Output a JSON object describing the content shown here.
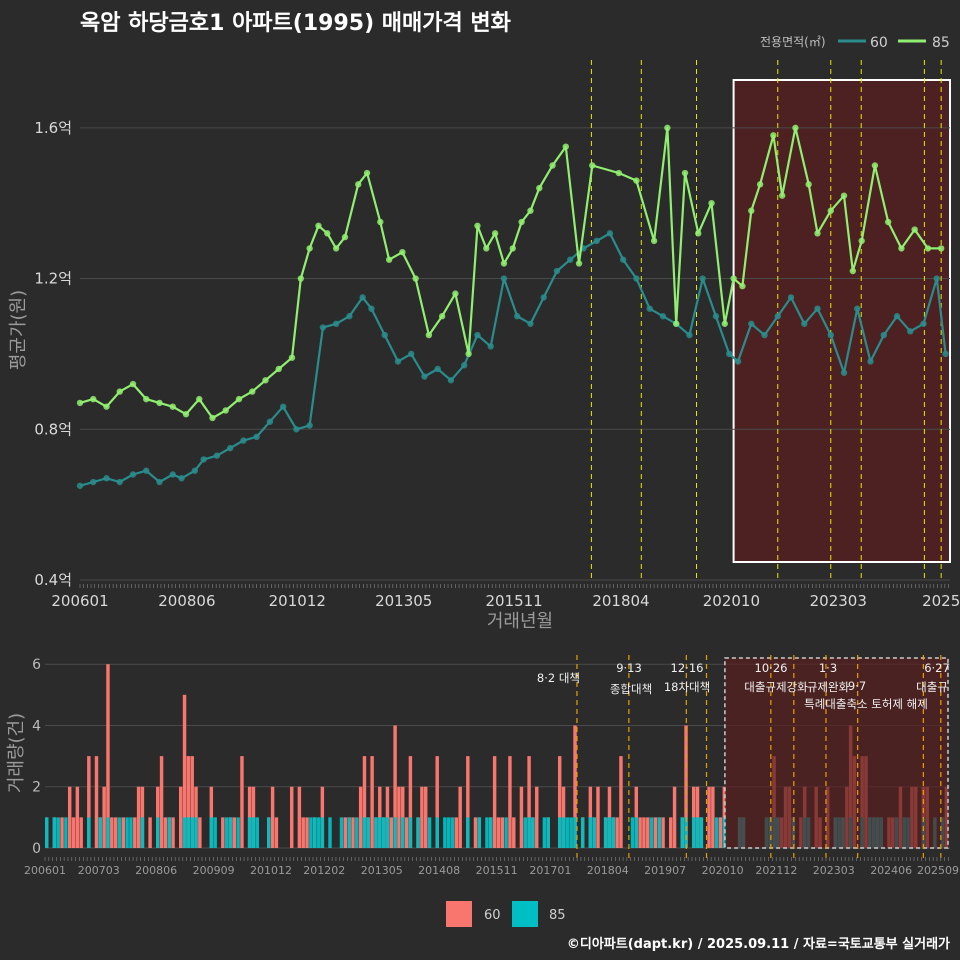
{
  "title": "옥암 하당금호1 아파트(1995) 매매가격 변화",
  "footer": "©디아파트(dapt.kr) / 2025.09.11 / 자료=국토교통부 실거래가",
  "colors": {
    "bg": "#2b2b2b",
    "line60": "#2a8c8c",
    "line85": "#90ee70",
    "bar60": "#f8766d",
    "bar85": "#00bfc4",
    "highlight": "#5a1f1f",
    "vline": "#e8e800",
    "vline2": "#e8a000"
  },
  "chart_data": [
    {
      "type": "line",
      "legend_title": "전용면적(㎡)",
      "series": [
        {
          "name": "60",
          "color": "#2a8c8c",
          "x": [
            2006.0,
            2006.3,
            2006.6,
            2006.9,
            2007.2,
            2007.5,
            2007.8,
            2008.1,
            2008.3,
            2008.6,
            2008.8,
            2009.1,
            2009.4,
            2009.7,
            2010.0,
            2010.3,
            2010.6,
            2010.9,
            2011.2,
            2011.5,
            2011.8,
            2012.1,
            2012.4,
            2012.6,
            2012.9,
            2013.2,
            2013.5,
            2013.8,
            2014.1,
            2014.4,
            2014.7,
            2015.0,
            2015.3,
            2015.6,
            2015.9,
            2016.2,
            2016.5,
            2016.8,
            2017.1,
            2017.4,
            2017.7,
            2018.0,
            2018.3,
            2018.6,
            2018.9,
            2019.2,
            2019.5,
            2019.8,
            2020.1,
            2020.4,
            2020.7,
            2020.9,
            2021.2,
            2021.5,
            2021.8,
            2022.1,
            2022.4,
            2022.7,
            2023.0,
            2023.3,
            2023.6,
            2023.9,
            2024.2,
            2024.5,
            2024.8,
            2025.1,
            2025.4,
            2025.6
          ],
          "values": [
            0.65,
            0.66,
            0.67,
            0.66,
            0.68,
            0.69,
            0.66,
            0.68,
            0.67,
            0.69,
            0.72,
            0.73,
            0.75,
            0.77,
            0.78,
            0.82,
            0.86,
            0.8,
            0.81,
            1.07,
            1.08,
            1.1,
            1.15,
            1.12,
            1.05,
            0.98,
            1.0,
            0.94,
            0.96,
            0.93,
            0.97,
            1.05,
            1.02,
            1.2,
            1.1,
            1.08,
            1.15,
            1.22,
            1.25,
            1.28,
            1.3,
            1.32,
            1.25,
            1.2,
            1.12,
            1.1,
            1.08,
            1.05,
            1.2,
            1.1,
            1.0,
            0.98,
            1.08,
            1.05,
            1.1,
            1.15,
            1.08,
            1.12,
            1.05,
            0.95,
            1.12,
            0.98,
            1.05,
            1.1,
            1.06,
            1.08,
            1.2,
            1.0
          ]
        },
        {
          "name": "85",
          "color": "#90ee70",
          "x": [
            2006.0,
            2006.3,
            2006.6,
            2006.9,
            2007.2,
            2007.5,
            2007.8,
            2008.1,
            2008.4,
            2008.7,
            2009.0,
            2009.3,
            2009.6,
            2009.9,
            2010.2,
            2010.5,
            2010.8,
            2011.0,
            2011.2,
            2011.4,
            2011.6,
            2011.8,
            2012.0,
            2012.3,
            2012.5,
            2012.8,
            2013.0,
            2013.3,
            2013.6,
            2013.9,
            2014.2,
            2014.5,
            2014.8,
            2015.0,
            2015.2,
            2015.4,
            2015.6,
            2015.8,
            2016.0,
            2016.2,
            2016.4,
            2016.7,
            2017.0,
            2017.3,
            2017.6,
            2018.2,
            2018.6,
            2019.0,
            2019.3,
            2019.5,
            2019.7,
            2020.0,
            2020.3,
            2020.6,
            2020.8,
            2021.0,
            2021.2,
            2021.4,
            2021.7,
            2021.9,
            2022.2,
            2022.5,
            2022.7,
            2023.0,
            2023.3,
            2023.5,
            2023.7,
            2024.0,
            2024.3,
            2024.6,
            2024.9,
            2025.2,
            2025.5
          ],
          "values": [
            0.87,
            0.88,
            0.86,
            0.9,
            0.92,
            0.88,
            0.87,
            0.86,
            0.84,
            0.88,
            0.83,
            0.85,
            0.88,
            0.9,
            0.93,
            0.96,
            0.99,
            1.2,
            1.28,
            1.34,
            1.32,
            1.28,
            1.31,
            1.45,
            1.48,
            1.35,
            1.25,
            1.27,
            1.2,
            1.05,
            1.1,
            1.16,
            1.0,
            1.34,
            1.28,
            1.32,
            1.24,
            1.28,
            1.35,
            1.38,
            1.44,
            1.5,
            1.55,
            1.24,
            1.5,
            1.48,
            1.46,
            1.3,
            1.6,
            1.08,
            1.48,
            1.32,
            1.4,
            1.08,
            1.2,
            1.18,
            1.38,
            1.45,
            1.58,
            1.42,
            1.6,
            1.45,
            1.32,
            1.38,
            1.42,
            1.22,
            1.3,
            1.5,
            1.35,
            1.28,
            1.33,
            1.28,
            1.28
          ]
        }
      ],
      "y_ticks": [
        "0.4억",
        "0.8억",
        "1.2억",
        "1.6억"
      ],
      "y_tick_values": [
        0.4,
        0.8,
        1.2,
        1.6
      ],
      "ylim": [
        0.4,
        1.78
      ],
      "x_ticks": [
        "200601",
        "200806",
        "201012",
        "201305",
        "201511",
        "201804",
        "202010",
        "202303",
        "2025"
      ],
      "x_tick_values": [
        2006.0,
        2008.42,
        2010.92,
        2013.33,
        2015.83,
        2018.25,
        2020.75,
        2023.17,
        2025.5
      ],
      "xlim": [
        2006.0,
        2025.7
      ],
      "xlabel": "거래년월",
      "ylabel": "평균가(원)",
      "vlines": [
        2017.58,
        2018.71,
        2019.96,
        2021.8,
        2023.0,
        2023.69,
        2025.12,
        2025.5
      ],
      "highlight": [
        2020.8,
        2025.7
      ],
      "grid": true
    },
    {
      "type": "bar",
      "series": [
        {
          "name": "60",
          "color": "#f8766d"
        },
        {
          "name": "85",
          "color": "#00bfc4"
        }
      ],
      "ylabel": "거래량(건)",
      "y_ticks": [
        "0",
        "2",
        "4",
        "6"
      ],
      "y_tick_values": [
        0,
        2,
        4,
        6
      ],
      "ylim": [
        0,
        6.3
      ],
      "x_ticks": [
        "200601",
        "200703",
        "200806",
        "200909",
        "201012",
        "201202",
        "201305",
        "201408",
        "201511",
        "201701",
        "201804",
        "201907",
        "202010",
        "202112",
        "202303",
        "202406",
        "202509"
      ],
      "x_tick_values": [
        2006.0,
        2007.17,
        2008.42,
        2009.67,
        2010.92,
        2012.08,
        2013.33,
        2014.58,
        2015.83,
        2017.0,
        2018.25,
        2019.5,
        2020.75,
        2021.92,
        2023.17,
        2024.42,
        2025.67
      ],
      "xlim": [
        2006.0,
        2025.7
      ],
      "annotations": [
        {
          "date": "8·2 대책"
        },
        {
          "date": "9·13",
          "text": "종합대책"
        },
        {
          "date": "12·16",
          "text": "18차대책"
        },
        {
          "date": "10·26",
          "text": "대출규제강화"
        },
        {
          "date": "1·3",
          "text": "규제완화"
        },
        {
          "date": "9·7",
          "text": "특례대출축소 토허제 해제"
        },
        {
          "date": "6·27",
          "text": "대출규"
        }
      ],
      "legend": [
        "60",
        "85"
      ]
    }
  ]
}
